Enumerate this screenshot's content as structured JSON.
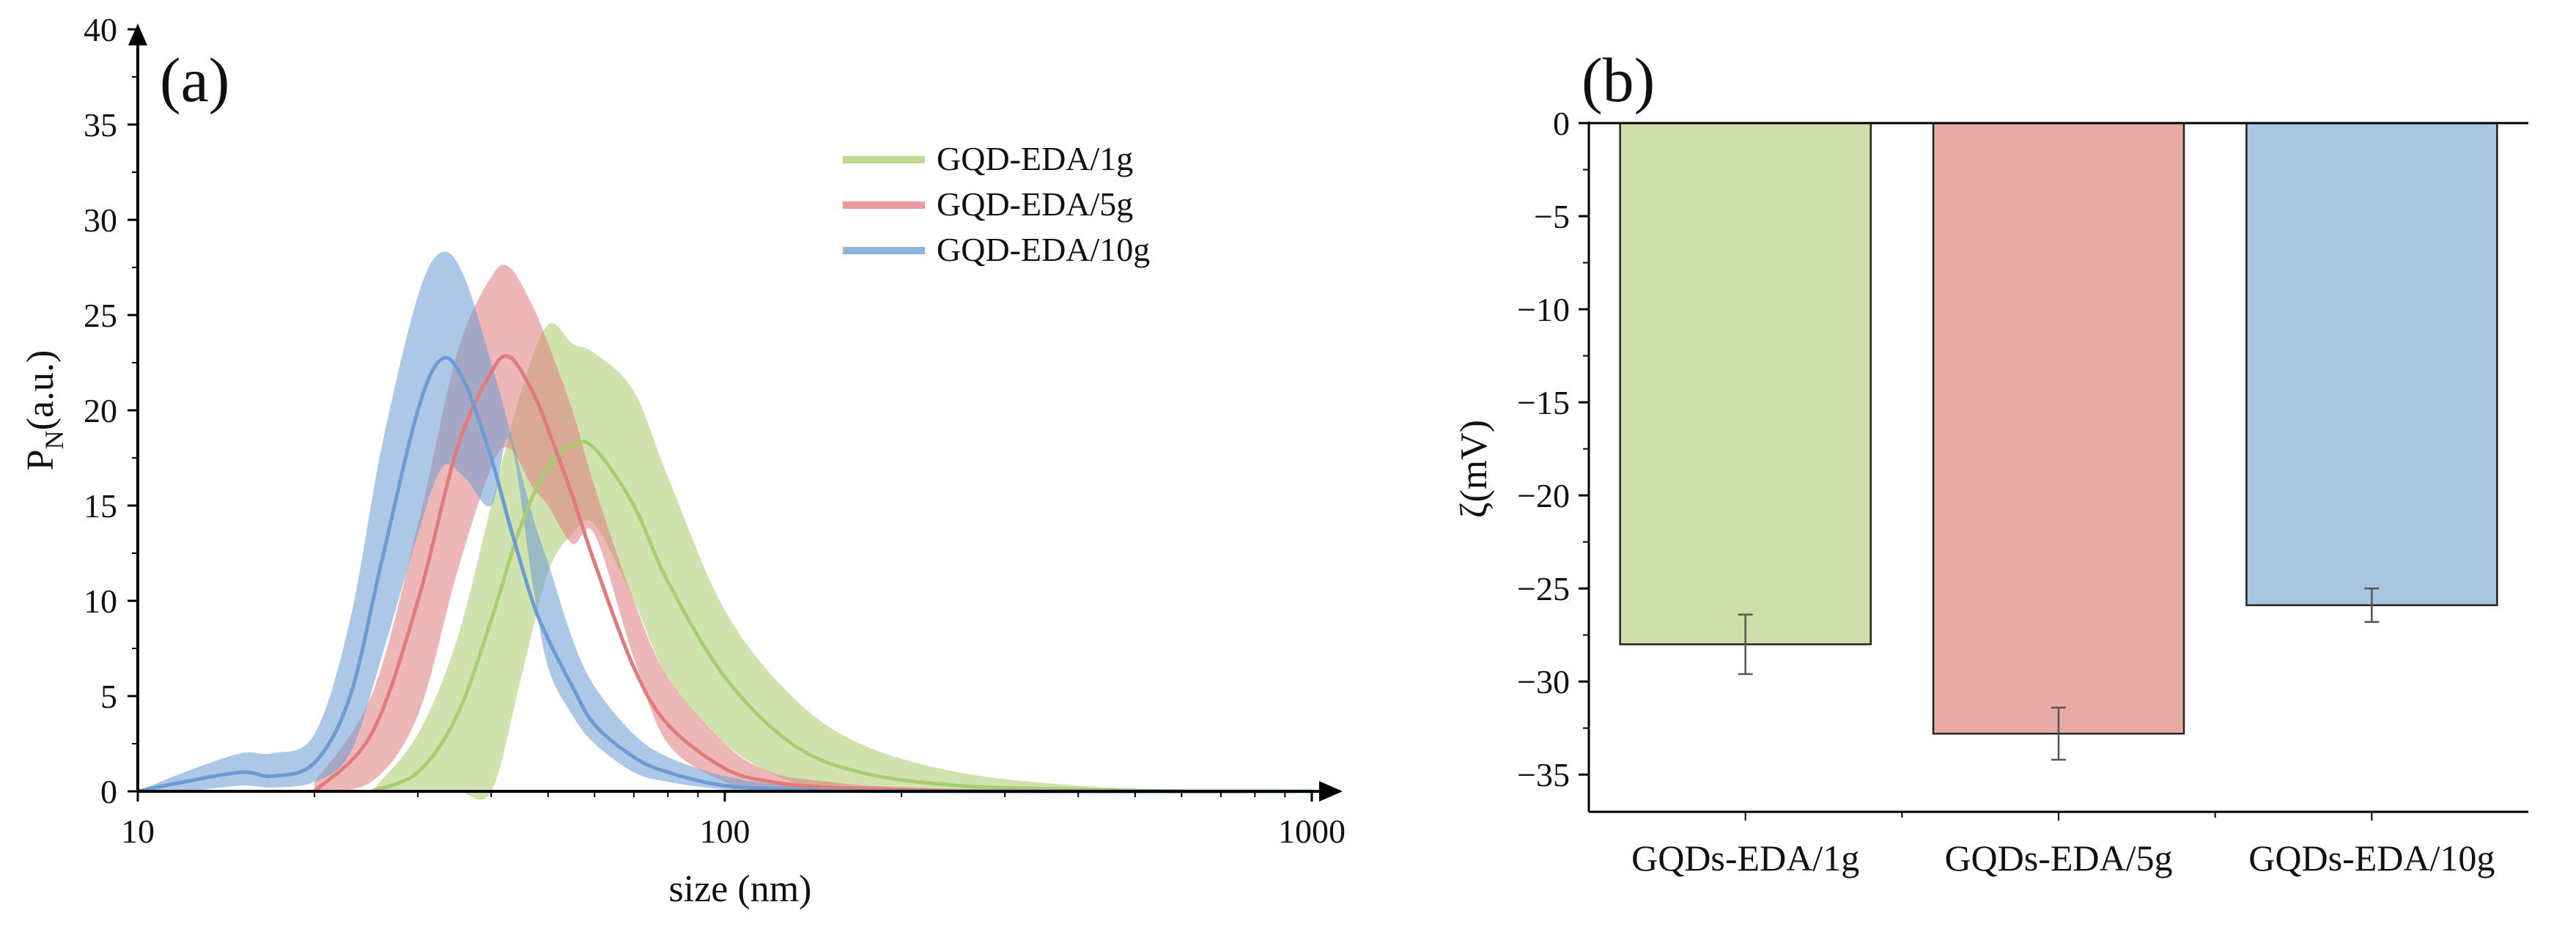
{
  "chart_data": [
    {
      "type": "area",
      "panel_label": "(a)",
      "xlabel": "size (nm)",
      "ylabel_main": "P",
      "ylabel_sub": "N",
      "ylabel_rest": "(a.u.)",
      "xscale": "log",
      "xlim": [
        10,
        1000
      ],
      "ylim": [
        0,
        40
      ],
      "xticks": [
        10,
        100,
        1000
      ],
      "xtick_labels": [
        "10",
        "100",
        "1000"
      ],
      "yticks": [
        0,
        5,
        10,
        15,
        20,
        25,
        30,
        35,
        40
      ],
      "ytick_labels": [
        "0",
        "5",
        "10",
        "15",
        "20",
        "25",
        "30",
        "35",
        "40"
      ],
      "legend_position": "top-right",
      "series": [
        {
          "name": "GQD-EDA/1g",
          "color": "#a9cc6e",
          "x": [
            25,
            30,
            35,
            40,
            45,
            50,
            55,
            60,
            70,
            80,
            100,
            130,
            170,
            250,
            400,
            600,
            1000
          ],
          "mean": [
            0,
            1,
            4,
            9,
            14,
            17,
            18.2,
            18,
            15,
            11,
            6,
            2.5,
            1,
            0.3,
            0.1,
            0,
            0
          ],
          "upper": [
            0,
            3,
            8,
            15,
            21,
            24.5,
            23.5,
            23,
            21,
            16.5,
            9.5,
            5,
            2.5,
            1,
            0.3,
            0.1,
            0
          ],
          "lower": [
            0,
            0,
            0,
            0,
            6,
            11.5,
            13.5,
            14,
            10,
            6,
            2.5,
            0.5,
            0,
            0,
            0,
            0,
            0
          ]
        },
        {
          "name": "GQD-EDA/5g",
          "color": "#e07b7b",
          "x": [
            20,
            25,
            30,
            35,
            40,
            43,
            47,
            50,
            55,
            60,
            70,
            80,
            100,
            120,
            150,
            200,
            300,
            1000
          ],
          "mean": [
            0,
            3,
            10,
            18,
            22,
            22.8,
            21,
            19,
            15.5,
            12,
            6.5,
            3.5,
            1.2,
            0.5,
            0.2,
            0.1,
            0,
            0
          ],
          "upper": [
            0.5,
            5,
            14,
            23,
            27,
            27.5,
            25.5,
            23.5,
            20,
            16,
            10,
            6,
            2.5,
            1,
            0.5,
            0.2,
            0.1,
            0
          ],
          "lower": [
            0,
            0.5,
            4,
            11.5,
            17,
            18,
            16,
            15,
            13,
            13.5,
            7,
            2.5,
            0.5,
            0.1,
            0,
            0,
            0,
            0
          ]
        },
        {
          "name": "GQD-EDA/10g",
          "color": "#6a9bd2",
          "x": [
            10,
            12,
            15,
            17,
            20,
            23,
            26,
            30,
            33,
            36,
            40,
            43,
            47,
            50,
            55,
            60,
            70,
            80,
            100,
            130,
            200,
            1000
          ],
          "mean": [
            0,
            0.5,
            1,
            0.8,
            1.5,
            5,
            12,
            20,
            22.7,
            21.5,
            17.5,
            14,
            10,
            8,
            5.5,
            3.5,
            1.8,
            1,
            0.3,
            0.1,
            0,
            0
          ],
          "upper": [
            0,
            1,
            2,
            2,
            3,
            9,
            18,
            26,
            28.3,
            27,
            22.5,
            19,
            14.5,
            12,
            8,
            5.5,
            3,
            1.8,
            0.8,
            0.3,
            0.1,
            0
          ],
          "lower": [
            0,
            0,
            0.3,
            0.2,
            0.5,
            2,
            7,
            13.5,
            17,
            16.5,
            15,
            18.5,
            11,
            6.5,
            4,
            2.5,
            1,
            0.5,
            0.1,
            0,
            0,
            0
          ]
        }
      ]
    },
    {
      "type": "bar",
      "panel_label": "(b)",
      "ylabel": "ζ(mV)",
      "xlabel": "",
      "ylim": [
        -37,
        0
      ],
      "yticks": [
        0,
        -5,
        -10,
        -15,
        -20,
        -25,
        -30,
        -35
      ],
      "ytick_labels": [
        "0",
        "−5",
        "−10",
        "−15",
        "−20",
        "−25",
        "−30",
        "−35"
      ],
      "categories": [
        "GQDs-EDA/1g",
        "GQDs-EDA/5g",
        "GQDs-EDA/10g"
      ],
      "values": [
        -28,
        -32.8,
        -25.9
      ],
      "errors": [
        1.6,
        1.4,
        0.9
      ],
      "colors": [
        "#cfdfa9",
        "#e7aaa4",
        "#a8c6e0"
      ]
    }
  ]
}
